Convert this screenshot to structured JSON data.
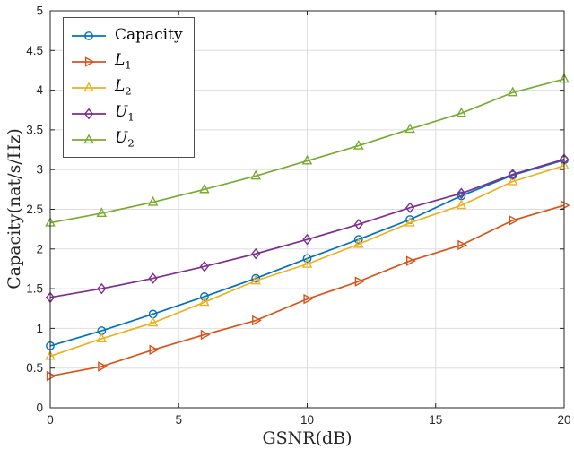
{
  "figure": {
    "background": "#ffffff",
    "axes_color": "#262626",
    "grid_color": "#dedede"
  },
  "chart_data": {
    "type": "line",
    "title": "",
    "xlabel": "GSNR(dB)",
    "ylabel": "Capacity(nat/s/Hz)",
    "xlim": [
      0,
      20
    ],
    "ylim": [
      0,
      5
    ],
    "x_ticks": [
      0,
      5,
      10,
      15,
      20
    ],
    "y_ticks": [
      0,
      0.5,
      1,
      1.5,
      2,
      2.5,
      3,
      3.5,
      4,
      4.5,
      5
    ],
    "grid": true,
    "legend_position": "top-left",
    "x": [
      0,
      2,
      4,
      6,
      8,
      10,
      12,
      14,
      16,
      18,
      20
    ],
    "series": [
      {
        "name": "Capacity",
        "legend_main": "Capacity",
        "legend_sub": "",
        "italic": false,
        "marker": "circle",
        "color": "#0072BD",
        "values": [
          0.78,
          0.97,
          1.18,
          1.4,
          1.63,
          1.88,
          2.12,
          2.37,
          2.67,
          2.93,
          3.12
        ]
      },
      {
        "name": "L1",
        "legend_main": "L",
        "legend_sub": "1",
        "italic": true,
        "marker": "triangle-right",
        "color": "#D95319",
        "values": [
          0.4,
          0.52,
          0.73,
          0.92,
          1.1,
          1.37,
          1.59,
          1.85,
          2.05,
          2.36,
          2.55
        ]
      },
      {
        "name": "L2",
        "legend_main": "L",
        "legend_sub": "2",
        "italic": true,
        "marker": "triangle-up",
        "color": "#EDB120",
        "values": [
          0.65,
          0.87,
          1.07,
          1.33,
          1.6,
          1.81,
          2.06,
          2.33,
          2.55,
          2.85,
          3.05
        ]
      },
      {
        "name": "U1",
        "legend_main": "U",
        "legend_sub": "1",
        "italic": true,
        "marker": "diamond",
        "color": "#7E2F8E",
        "values": [
          1.39,
          1.5,
          1.63,
          1.78,
          1.94,
          2.12,
          2.31,
          2.52,
          2.7,
          2.94,
          3.13
        ]
      },
      {
        "name": "U2",
        "legend_main": "U",
        "legend_sub": "2",
        "italic": true,
        "marker": "triangle-up",
        "color": "#77AC30",
        "values": [
          2.33,
          2.45,
          2.59,
          2.75,
          2.92,
          3.11,
          3.3,
          3.51,
          3.71,
          3.97,
          4.14
        ]
      }
    ]
  }
}
